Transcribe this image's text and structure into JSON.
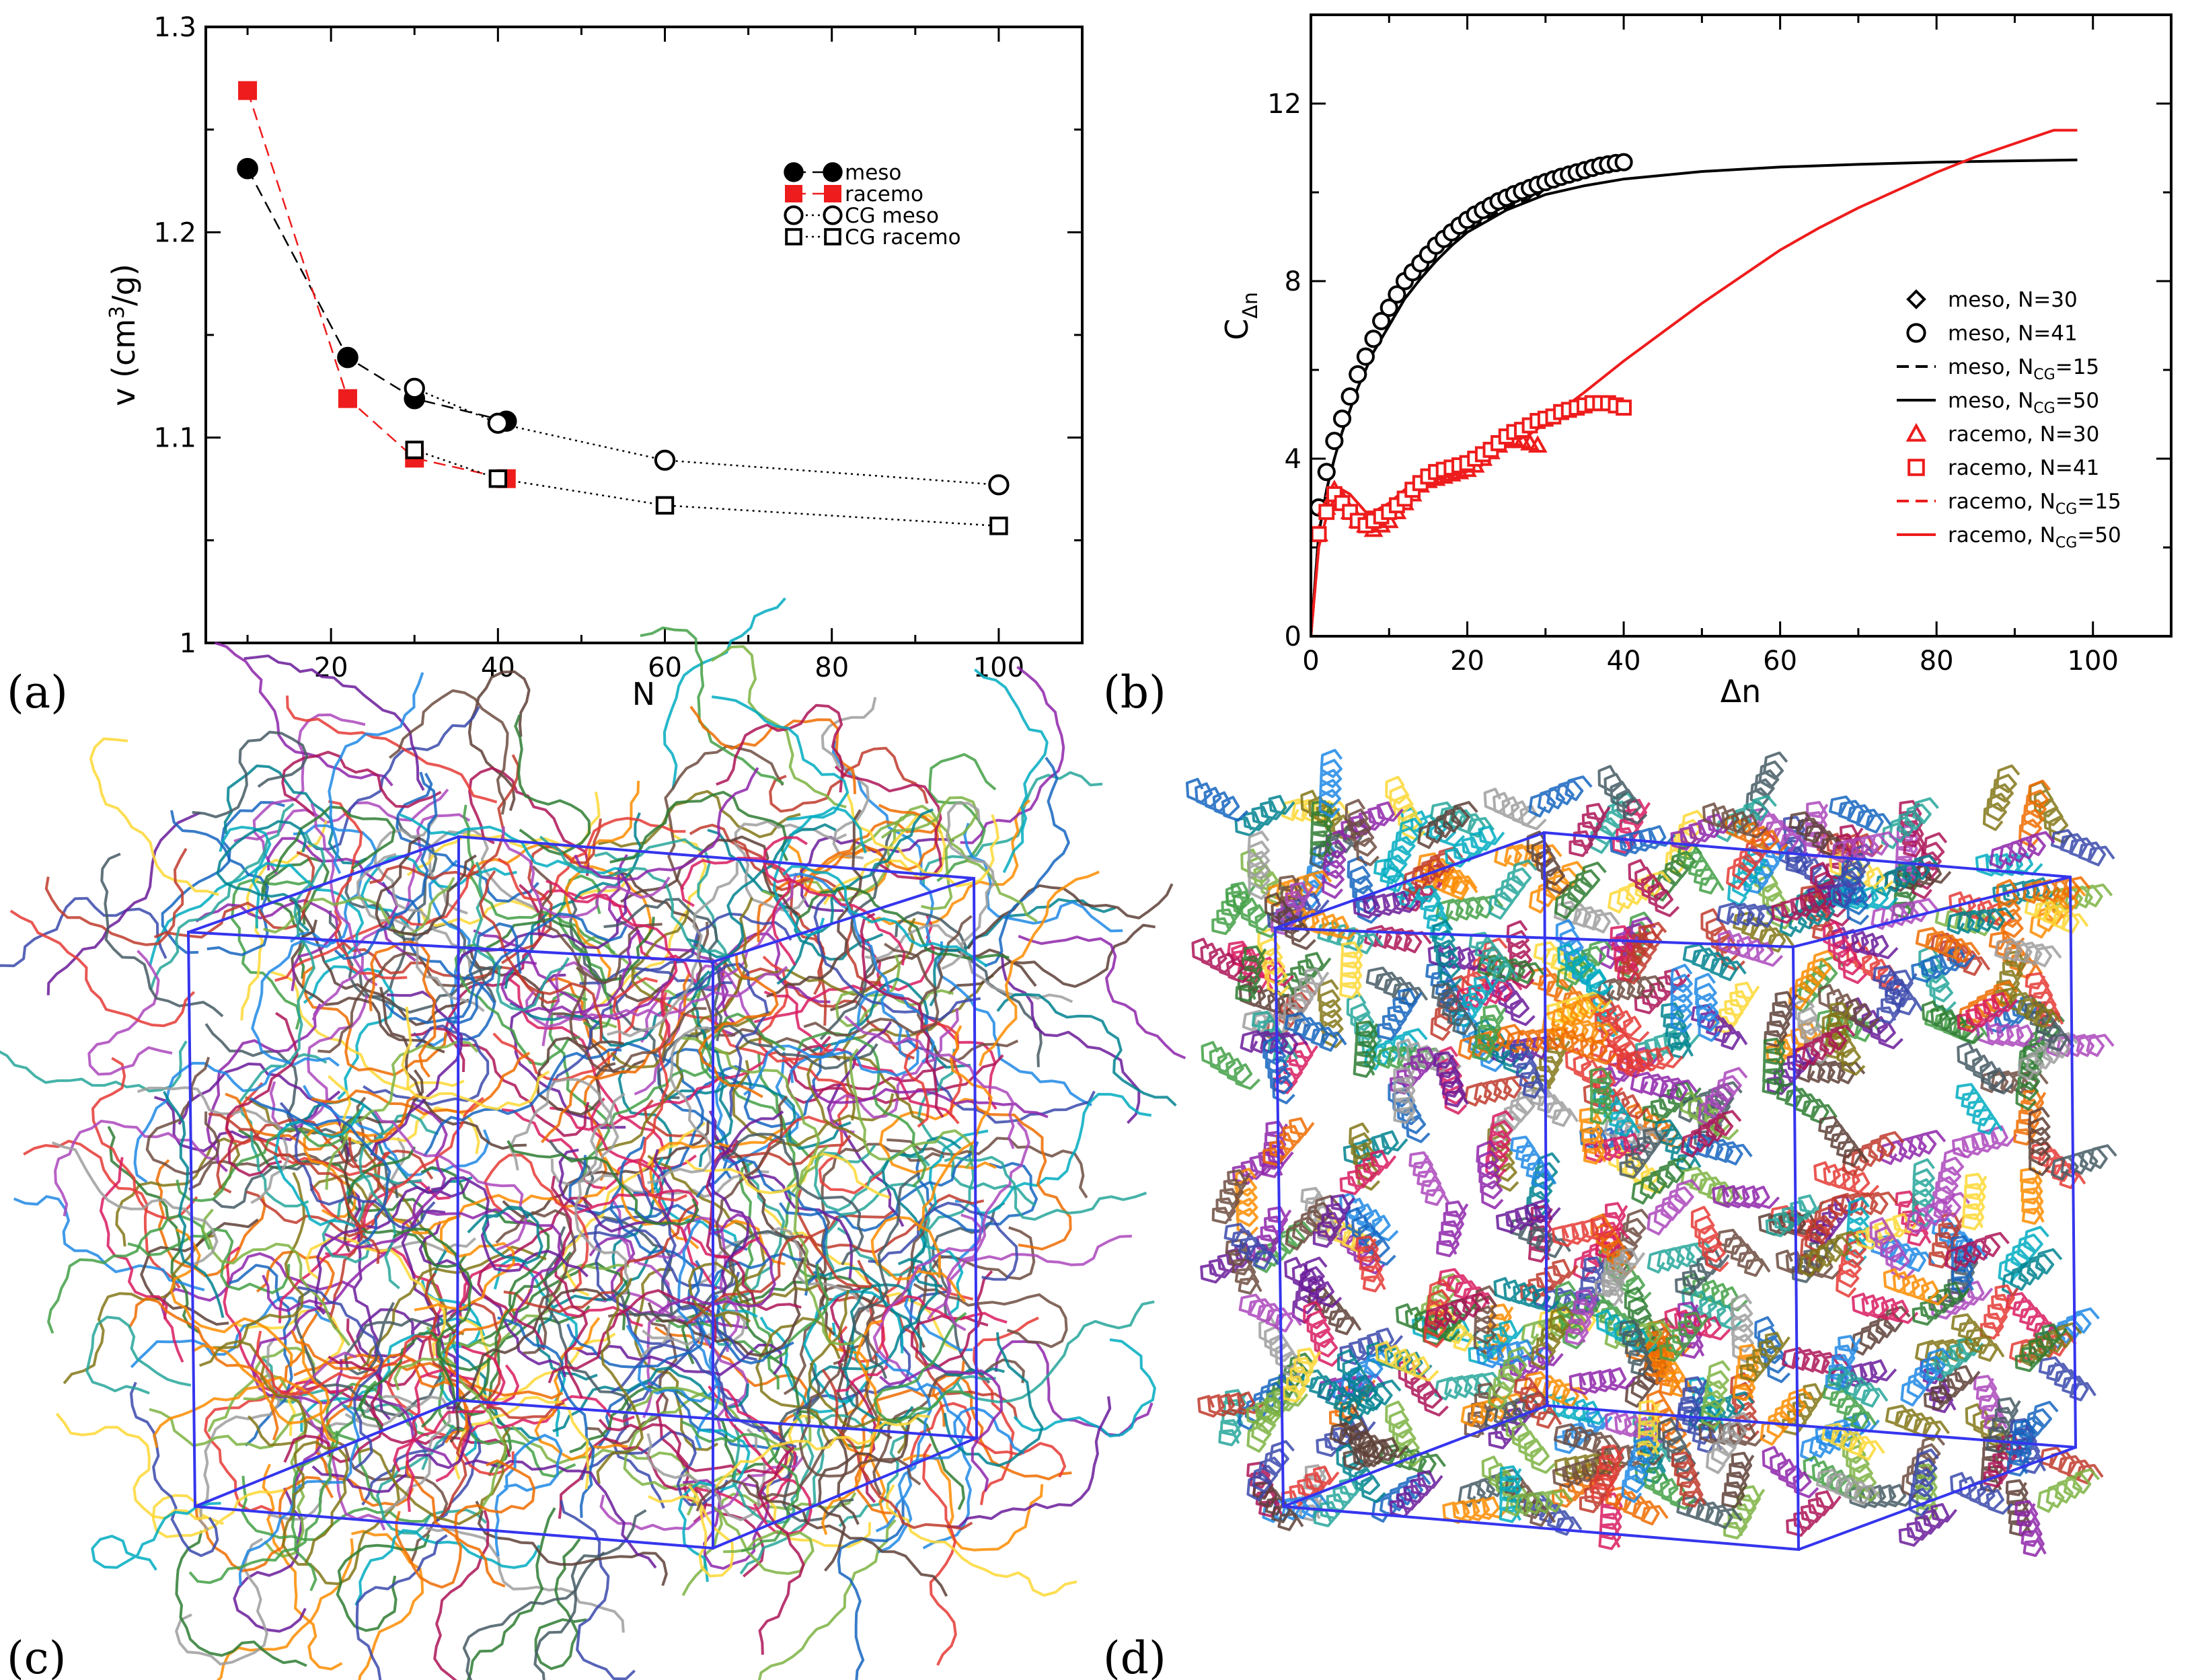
{
  "colors": {
    "meso": "#000000",
    "racemo": "#ee1c1c",
    "box": "#3535ee"
  },
  "panels": {
    "a": {
      "tag": "(a)"
    },
    "b": {
      "tag": "(b)"
    },
    "c": {
      "tag": "(c)",
      "description_icon": "amorphous-polymer-chains-render"
    },
    "d": {
      "tag": "(d)",
      "description_icon": "helical-polymer-chains-render"
    }
  },
  "chart_data": [
    {
      "id": "a",
      "type": "line",
      "xlabel": "N",
      "ylabel": "v (cm",
      "ylabel_sup": "3",
      "ylabel_tail": "/g)",
      "xlim": [
        5,
        110
      ],
      "ylim": [
        1.0,
        1.3
      ],
      "xticks": [
        20,
        40,
        60,
        80,
        100
      ],
      "yticks": [
        1.0,
        1.1,
        1.2,
        1.3
      ],
      "yticklabels": [
        "1",
        "1.1",
        "1.2",
        "1.3"
      ],
      "series": [
        {
          "name": "meso",
          "marker": "filled-circle",
          "line": "dashed",
          "color": "#000000",
          "x": [
            10,
            22,
            30,
            41
          ],
          "y": [
            1.231,
            1.139,
            1.119,
            1.108
          ]
        },
        {
          "name": "racemo",
          "marker": "filled-square",
          "line": "dashed",
          "color": "#ee1c1c",
          "x": [
            10,
            22,
            30,
            41
          ],
          "y": [
            1.269,
            1.119,
            1.09,
            1.08
          ]
        },
        {
          "name": "CG meso",
          "marker": "open-circle",
          "line": "dotted",
          "color": "#000000",
          "x": [
            30,
            40,
            60,
            100
          ],
          "y": [
            1.124,
            1.107,
            1.089,
            1.077
          ]
        },
        {
          "name": "CG racemo",
          "marker": "open-square",
          "line": "dotted",
          "color": "#000000",
          "x": [
            30,
            40,
            60,
            100
          ],
          "y": [
            1.094,
            1.08,
            1.067,
            1.057
          ]
        }
      ]
    },
    {
      "id": "b",
      "type": "line",
      "xlabel": "Δn",
      "ylabel": "C",
      "ylabel_sub": "Δn",
      "xlim": [
        0,
        110
      ],
      "ylim": [
        0,
        14
      ],
      "xticks": [
        0,
        20,
        40,
        60,
        80,
        100
      ],
      "yticks": [
        0,
        4,
        8,
        12
      ],
      "series": [
        {
          "name": "meso, N=30",
          "marker": "open-diamond",
          "line": "none",
          "color": "#000000",
          "x": [
            1,
            2,
            3,
            4,
            5,
            6,
            7,
            8,
            9,
            10,
            11,
            12,
            13,
            14,
            15,
            16,
            17,
            18,
            19,
            20,
            21,
            22,
            23,
            24,
            25,
            26,
            27,
            28,
            29
          ],
          "y": [
            2.9,
            3.7,
            4.4,
            4.9,
            5.4,
            5.9,
            6.3,
            6.7,
            7.1,
            7.4,
            7.7,
            8.0,
            8.2,
            8.4,
            8.6,
            8.8,
            8.95,
            9.1,
            9.25,
            9.38,
            9.5,
            9.6,
            9.7,
            9.78,
            9.86,
            9.93,
            10.0,
            10.05,
            10.1
          ]
        },
        {
          "name": "meso, N=41",
          "marker": "open-circle",
          "line": "none",
          "color": "#000000",
          "x": [
            1,
            2,
            3,
            4,
            5,
            6,
            7,
            8,
            9,
            10,
            11,
            12,
            13,
            14,
            15,
            16,
            17,
            18,
            19,
            20,
            21,
            22,
            23,
            24,
            25,
            26,
            27,
            28,
            29,
            30,
            31,
            32,
            33,
            34,
            35,
            36,
            37,
            38,
            39,
            40
          ],
          "y": [
            2.9,
            3.7,
            4.4,
            4.9,
            5.4,
            5.9,
            6.3,
            6.7,
            7.1,
            7.4,
            7.7,
            8.0,
            8.2,
            8.4,
            8.6,
            8.8,
            8.95,
            9.1,
            9.25,
            9.38,
            9.5,
            9.6,
            9.7,
            9.8,
            9.88,
            9.96,
            10.03,
            10.1,
            10.17,
            10.23,
            10.29,
            10.35,
            10.4,
            10.45,
            10.5,
            10.55,
            10.6,
            10.63,
            10.66,
            10.68
          ]
        },
        {
          "name": "meso, N",
          "name_sub": "CG",
          "name_tail": "=15",
          "marker": "none",
          "line": "dashed",
          "color": "#000000",
          "x": [
            0,
            1,
            2,
            3,
            4,
            6,
            8,
            10,
            12,
            14,
            16,
            18,
            20,
            22,
            24,
            26,
            28
          ],
          "y": [
            0,
            2.3,
            3.3,
            4.0,
            4.6,
            5.6,
            6.4,
            7.0,
            7.6,
            8.05,
            8.45,
            8.8,
            9.1,
            9.35,
            9.55,
            9.72,
            9.85
          ]
        },
        {
          "name": "meso, N",
          "name_sub": "CG",
          "name_tail": "=50",
          "marker": "none",
          "line": "solid",
          "color": "#000000",
          "x": [
            0,
            1,
            2,
            3,
            4,
            6,
            8,
            10,
            12,
            14,
            16,
            18,
            20,
            25,
            30,
            35,
            40,
            50,
            60,
            70,
            80,
            90,
            98
          ],
          "y": [
            0,
            2.3,
            3.3,
            4.0,
            4.6,
            5.6,
            6.4,
            7.0,
            7.6,
            8.05,
            8.45,
            8.8,
            9.1,
            9.6,
            9.95,
            10.15,
            10.3,
            10.47,
            10.57,
            10.63,
            10.68,
            10.71,
            10.73
          ]
        },
        {
          "name": "racemo, N=30",
          "marker": "open-triangle",
          "line": "none",
          "color": "#ee1c1c",
          "x": [
            1,
            2,
            3,
            4,
            5,
            6,
            7,
            8,
            9,
            10,
            11,
            12,
            13,
            14,
            15,
            16,
            17,
            18,
            19,
            20,
            21,
            22,
            23,
            24,
            25,
            26,
            27,
            28,
            29
          ],
          "y": [
            2.3,
            2.9,
            3.3,
            3.1,
            2.8,
            2.6,
            2.5,
            2.4,
            2.5,
            2.6,
            2.8,
            3.0,
            3.2,
            3.4,
            3.5,
            3.55,
            3.6,
            3.65,
            3.7,
            3.75,
            3.85,
            4.0,
            4.15,
            4.3,
            4.4,
            4.45,
            4.4,
            4.35,
            4.3
          ]
        },
        {
          "name": "racemo, N=41",
          "marker": "open-square",
          "line": "none",
          "color": "#ee1c1c",
          "x": [
            1,
            2,
            3,
            4,
            5,
            6,
            7,
            8,
            9,
            10,
            11,
            12,
            13,
            14,
            15,
            16,
            17,
            18,
            19,
            20,
            21,
            22,
            23,
            24,
            25,
            26,
            27,
            28,
            29,
            30,
            31,
            32,
            33,
            34,
            35,
            36,
            37,
            38,
            39,
            40
          ],
          "y": [
            2.3,
            2.8,
            3.2,
            3.0,
            2.8,
            2.6,
            2.5,
            2.6,
            2.7,
            2.8,
            2.95,
            3.1,
            3.3,
            3.45,
            3.6,
            3.7,
            3.75,
            3.8,
            3.85,
            3.9,
            4.0,
            4.1,
            4.2,
            4.35,
            4.5,
            4.6,
            4.65,
            4.75,
            4.85,
            4.9,
            4.95,
            5.05,
            5.1,
            5.15,
            5.2,
            5.25,
            5.25,
            5.25,
            5.2,
            5.15
          ]
        },
        {
          "name": "racemo, N",
          "name_sub": "CG",
          "name_tail": "=15",
          "marker": "none",
          "line": "dashed",
          "color": "#ee1c1c",
          "x": [
            0,
            1,
            2,
            3,
            4,
            5,
            6,
            7,
            8,
            9,
            10,
            12,
            14,
            16,
            18,
            20,
            22,
            24,
            26,
            28
          ],
          "y": [
            0,
            2.0,
            2.7,
            3.1,
            3.3,
            3.2,
            3.0,
            2.8,
            2.8,
            2.9,
            3.0,
            3.3,
            3.6,
            3.85,
            3.95,
            4.05,
            4.2,
            4.35,
            4.45,
            4.5
          ]
        },
        {
          "name": "racemo, N",
          "name_sub": "CG",
          "name_tail": "=50",
          "marker": "none",
          "line": "solid",
          "color": "#ee1c1c",
          "x": [
            0,
            1,
            2,
            3,
            4,
            5,
            6,
            7,
            8,
            9,
            10,
            12,
            14,
            16,
            18,
            20,
            22,
            25,
            28,
            30,
            32,
            35,
            40,
            45,
            50,
            55,
            60,
            65,
            70,
            75,
            80,
            85,
            90,
            95,
            98
          ],
          "y": [
            0,
            2.0,
            2.7,
            3.1,
            3.3,
            3.2,
            3.0,
            2.8,
            2.8,
            2.9,
            3.0,
            3.3,
            3.6,
            3.85,
            3.95,
            4.05,
            4.2,
            4.4,
            4.55,
            4.8,
            5.1,
            5.5,
            6.2,
            6.85,
            7.5,
            8.1,
            8.7,
            9.2,
            9.65,
            10.05,
            10.45,
            10.8,
            11.1,
            11.4,
            11.4
          ]
        }
      ]
    }
  ]
}
